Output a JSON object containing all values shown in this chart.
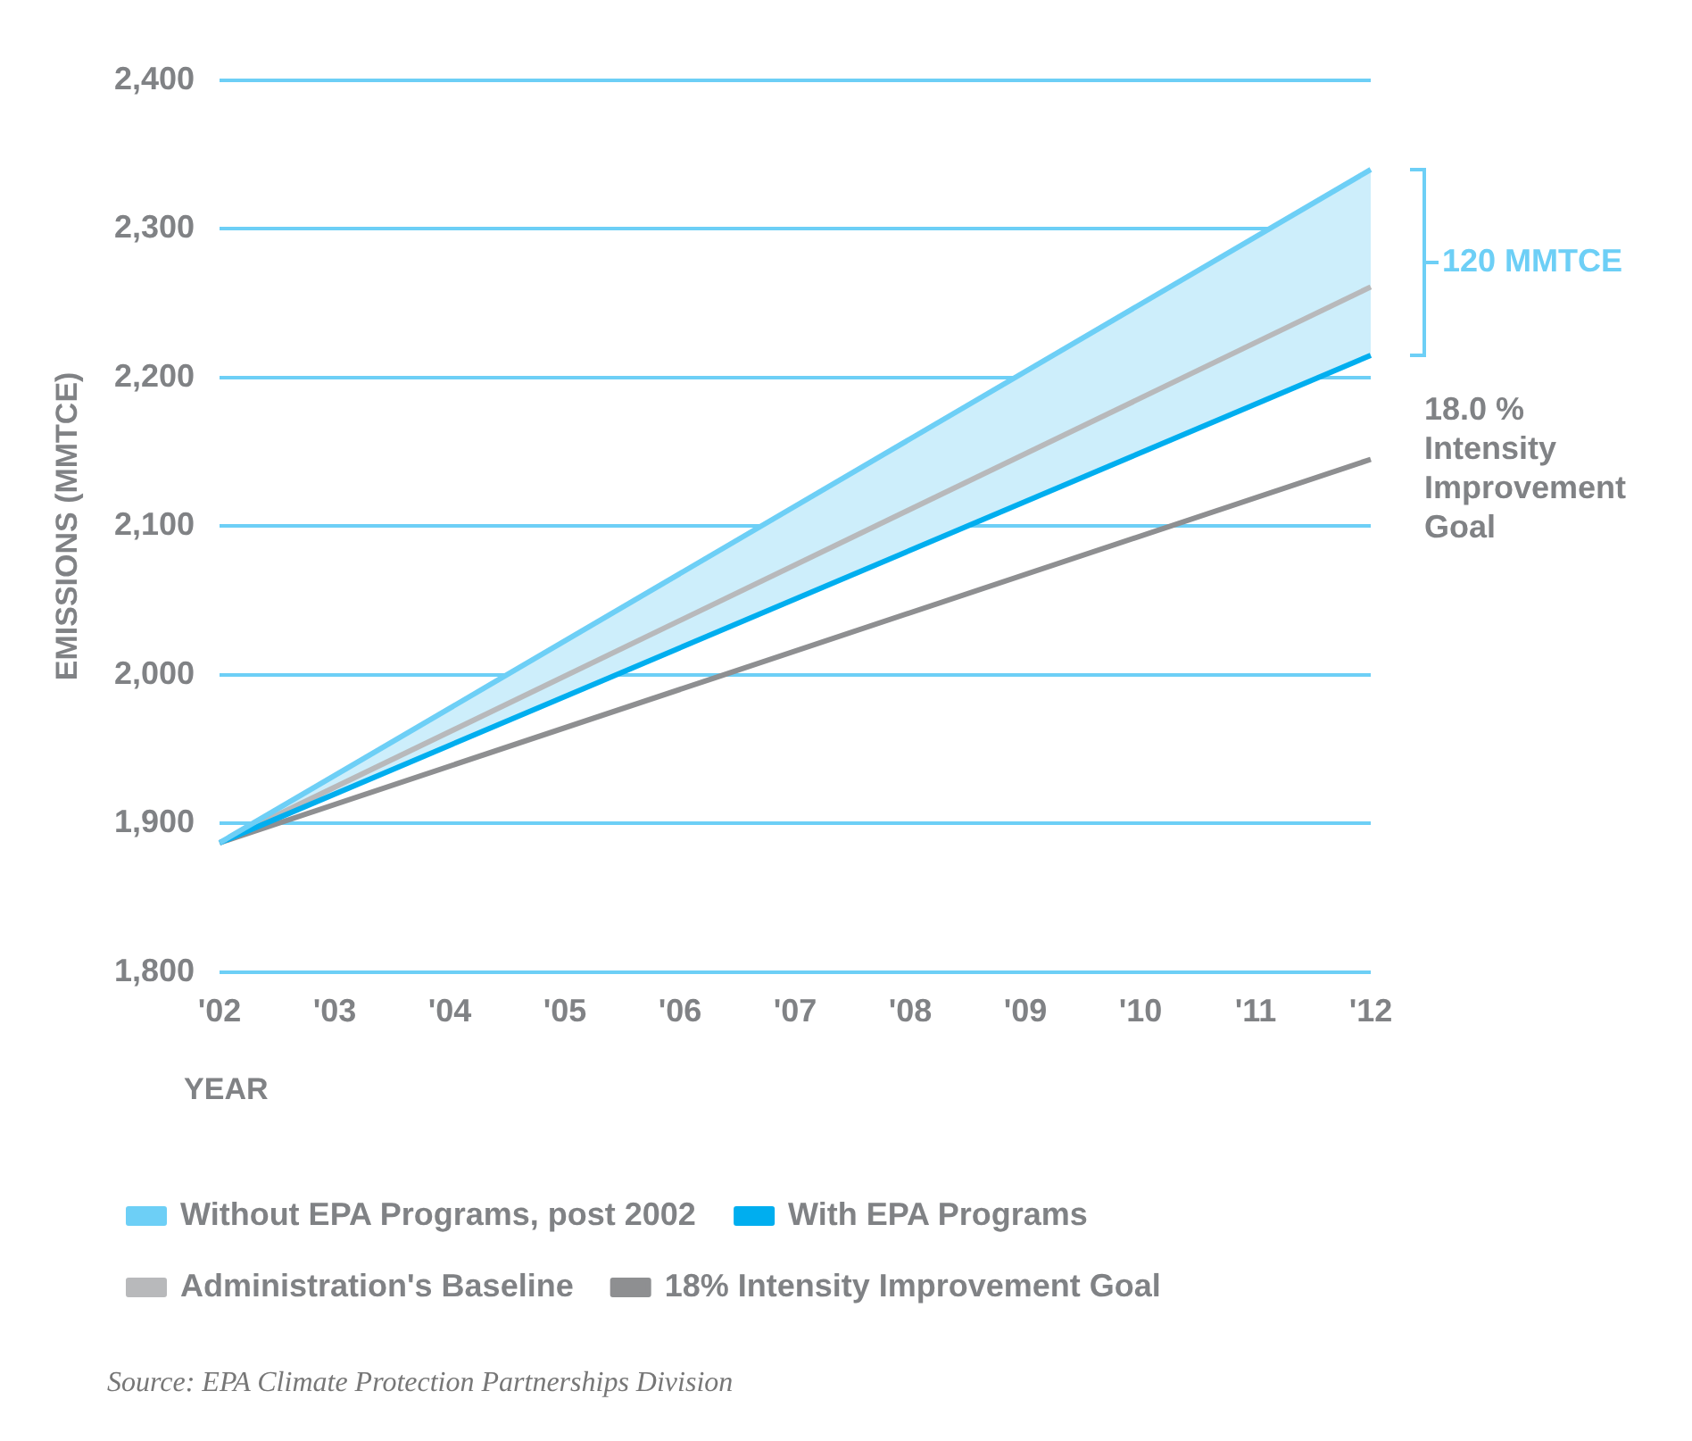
{
  "chart_data": {
    "type": "line",
    "xlabel": "YEAR",
    "ylabel": "EMISSIONS (MMTCE)",
    "categories": [
      "'02",
      "'03",
      "'04",
      "'05",
      "'06",
      "'07",
      "'08",
      "'09",
      "'10",
      "'11",
      "'12"
    ],
    "series": [
      {
        "name": "Without EPA Programs, post 2002",
        "color": "#6dcff6",
        "values": [
          1887,
          null,
          null,
          null,
          null,
          null,
          null,
          null,
          null,
          null,
          2340
        ]
      },
      {
        "name": "With EPA Programs",
        "color": "#00aeef",
        "values": [
          1887,
          null,
          null,
          null,
          null,
          null,
          null,
          null,
          null,
          null,
          2215
        ]
      },
      {
        "name": "Administration's Baseline",
        "color": "#b8b9bb",
        "values": [
          1887,
          null,
          null,
          null,
          null,
          null,
          null,
          null,
          null,
          null,
          2261
        ]
      },
      {
        "name": "18% Intensity Improvement Goal",
        "color": "#8e8f91",
        "values": [
          1887,
          null,
          null,
          null,
          null,
          null,
          null,
          null,
          null,
          null,
          2145
        ]
      }
    ],
    "ylim": [
      1800,
      2400
    ],
    "yticks": [
      {
        "value": 1800,
        "label": "1,800"
      },
      {
        "value": 1900,
        "label": "1,900"
      },
      {
        "value": 2000,
        "label": "2,000"
      },
      {
        "value": 2100,
        "label": "2,100"
      },
      {
        "value": 2200,
        "label": "2,200"
      },
      {
        "value": 2300,
        "label": "2,300"
      },
      {
        "value": 2400,
        "label": "2,400"
      }
    ],
    "grid": "y",
    "legend": "bottom",
    "marker": "none",
    "line_style": "solid",
    "annotations": [
      "120 MMTCE",
      "18.0 % Intensity Improvement Goal",
      "Source: EPA Climate Protection Partnerships Division"
    ]
  }
}
